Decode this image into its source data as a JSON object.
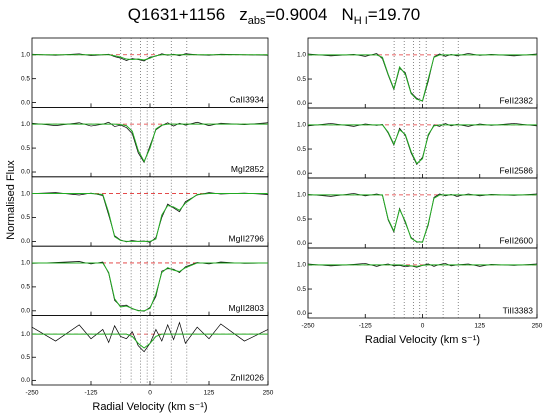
{
  "title": [
    "Q1631+1156",
    "z",
    "abs",
    "=0.9004",
    "N",
    "H I",
    "=19.70"
  ],
  "ylabel": "Normalised Flux",
  "components": [
    -62,
    -40,
    -20,
    -6,
    8,
    45,
    78
  ],
  "continuum": 1,
  "chart_data": [
    {
      "type": "line",
      "label": "CaII3934",
      "x": [
        -250,
        -200,
        -150,
        -125,
        -100,
        -87.5,
        -75,
        -62.5,
        -50,
        -37.5,
        -25,
        -12.5,
        0,
        12.5,
        25,
        37.5,
        50,
        62.5,
        75,
        100,
        125,
        150,
        200,
        250
      ],
      "xlim": [
        -250,
        250
      ],
      "xticks": [
        -250,
        -125,
        0,
        125,
        250
      ],
      "ylim": [
        -0.1,
        1.35
      ],
      "yticks": [
        {
          "value": 0,
          "label": "0.0"
        },
        {
          "value": 0.5,
          "label": "0.5"
        },
        {
          "value": 1,
          "label": "1.0"
        }
      ],
      "series": [
        {
          "color": "#000000",
          "values": [
            1.01,
            0.99,
            1.02,
            0.98,
            1.0,
            1.01,
            0.96,
            0.93,
            0.88,
            0.92,
            0.9,
            0.87,
            0.95,
            0.97,
            1.02,
            0.99,
            1.01,
            0.98,
            1.02,
            1.0,
            0.99,
            1.01,
            1.0,
            0.99
          ]
        },
        {
          "color": "#22aa22",
          "values": [
            1,
            1,
            1,
            1,
            1,
            1,
            0.98,
            0.95,
            0.91,
            0.9,
            0.91,
            0.89,
            0.93,
            0.98,
            1,
            1,
            1,
            1,
            1,
            1,
            1,
            1,
            1,
            1
          ]
        }
      ]
    },
    {
      "type": "line",
      "label": "MgI2852",
      "x": [
        -250,
        -200,
        -150,
        -125,
        -100,
        -87.5,
        -75,
        -62.5,
        -50,
        -37.5,
        -25,
        -12.5,
        0,
        12.5,
        25,
        37.5,
        50,
        62.5,
        75,
        100,
        125,
        150,
        200,
        250
      ],
      "xlim": [
        -250,
        250
      ],
      "xticks": [
        -250,
        -125,
        0,
        125,
        250
      ],
      "ylim": [
        -0.1,
        1.35
      ],
      "yticks": [
        {
          "value": 0,
          "label": "0.0"
        },
        {
          "value": 0.5,
          "label": "0.5"
        },
        {
          "value": 1,
          "label": "1.0"
        }
      ],
      "series": [
        {
          "color": "#000000",
          "values": [
            1.02,
            0.97,
            1.03,
            0.96,
            1.0,
            1.04,
            0.95,
            0.98,
            0.93,
            0.8,
            0.4,
            0.2,
            0.55,
            0.88,
            0.97,
            1.03,
            0.96,
            1.02,
            0.98,
            1.04,
            0.97,
            1.02,
            0.99,
            1.03
          ]
        },
        {
          "color": "#22aa22",
          "values": [
            1,
            1,
            1,
            1,
            1,
            1,
            1,
            0.99,
            0.97,
            0.85,
            0.45,
            0.22,
            0.5,
            0.9,
            0.98,
            1,
            1,
            1,
            1,
            1,
            1,
            1,
            1,
            1
          ]
        }
      ]
    },
    {
      "type": "line",
      "label": "MgII2796",
      "x": [
        -250,
        -200,
        -150,
        -125,
        -100,
        -87.5,
        -75,
        -62.5,
        -50,
        -37.5,
        -25,
        -12.5,
        0,
        12.5,
        25,
        37.5,
        50,
        62.5,
        75,
        100,
        125,
        150,
        200,
        250
      ],
      "xlim": [
        -250,
        250
      ],
      "xticks": [
        -250,
        -125,
        0,
        125,
        250
      ],
      "ylim": [
        -0.1,
        1.35
      ],
      "yticks": [
        {
          "value": 0,
          "label": "0.0"
        },
        {
          "value": 0.5,
          "label": "0.5"
        },
        {
          "value": 1,
          "label": "1.0"
        }
      ],
      "series": [
        {
          "color": "#000000",
          "values": [
            1.0,
            1.02,
            0.97,
            1.01,
            0.96,
            0.55,
            0.12,
            0.03,
            -0.01,
            0.02,
            0.0,
            0.01,
            -0.02,
            0.08,
            0.5,
            0.78,
            0.7,
            0.62,
            0.83,
            0.97,
            1.02,
            0.99,
            1.01,
            0.98
          ]
        },
        {
          "color": "#22aa22",
          "values": [
            1,
            1,
            1,
            1,
            0.98,
            0.6,
            0.1,
            0.02,
            0,
            0,
            0,
            0,
            0,
            0.05,
            0.55,
            0.75,
            0.72,
            0.65,
            0.8,
            0.98,
            1,
            1,
            1,
            1
          ]
        }
      ]
    },
    {
      "type": "line",
      "label": "MgII2803",
      "x": [
        -250,
        -200,
        -150,
        -125,
        -100,
        -87.5,
        -75,
        -62.5,
        -50,
        -37.5,
        -25,
        -12.5,
        0,
        12.5,
        25,
        37.5,
        50,
        62.5,
        75,
        100,
        125,
        150,
        200,
        250
      ],
      "xlim": [
        -250,
        250
      ],
      "xticks": [
        -250,
        -125,
        0,
        125,
        250
      ],
      "ylim": [
        -0.1,
        1.35
      ],
      "yticks": [
        {
          "value": 0,
          "label": "0.0"
        },
        {
          "value": 0.5,
          "label": "0.5"
        },
        {
          "value": 1,
          "label": "1.0"
        }
      ],
      "series": [
        {
          "color": "#000000",
          "values": [
            0.99,
            1.01,
            1.03,
            0.98,
            1.02,
            0.78,
            0.22,
            0.1,
            0.12,
            0.04,
            0.01,
            -0.01,
            0.07,
            0.3,
            0.83,
            0.88,
            0.87,
            0.8,
            0.92,
            1.01,
            0.98,
            1.02,
            0.99,
            1.0
          ]
        },
        {
          "color": "#22aa22",
          "values": [
            1,
            1,
            1,
            1,
            1,
            0.8,
            0.25,
            0.08,
            0.1,
            0.05,
            0,
            0,
            0.05,
            0.35,
            0.8,
            0.9,
            0.85,
            0.82,
            0.9,
            1,
            1,
            1,
            1,
            1
          ]
        }
      ]
    },
    {
      "type": "line",
      "label": "ZnII2026",
      "xlabel": "Radial Velocity (km s⁻¹)",
      "x": [
        -250,
        -200,
        -150,
        -125,
        -100,
        -87.5,
        -75,
        -62.5,
        -50,
        -37.5,
        -25,
        -12.5,
        0,
        12.5,
        25,
        37.5,
        50,
        62.5,
        75,
        100,
        125,
        150,
        200,
        250
      ],
      "xlim": [
        -250,
        250
      ],
      "xticks": [
        -250,
        -125,
        0,
        125,
        250
      ],
      "ylim": [
        -0.1,
        1.4
      ],
      "yticks": [
        {
          "value": 0,
          "label": "0.0"
        },
        {
          "value": 0.5,
          "label": "0.5"
        },
        {
          "value": 1,
          "label": "1.0"
        }
      ],
      "series": [
        {
          "color": "#000000",
          "values": [
            1.15,
            0.85,
            1.2,
            0.9,
            1.1,
            0.82,
            1.18,
            0.95,
            0.9,
            1.05,
            0.75,
            0.62,
            0.8,
            1.1,
            0.85,
            1.2,
            0.88,
            1.25,
            0.8,
            1.15,
            0.9,
            1.22,
            0.85,
            1.1
          ]
        },
        {
          "color": "#22aa22",
          "values": [
            1,
            1,
            1,
            1,
            1,
            1,
            1,
            1,
            1,
            0.95,
            0.8,
            0.7,
            0.8,
            0.95,
            1,
            1,
            1,
            1,
            1,
            1,
            1,
            1,
            1,
            1
          ]
        }
      ]
    },
    {
      "type": "line",
      "label": "FeII2382",
      "x": [
        -250,
        -200,
        -150,
        -125,
        -100,
        -87.5,
        -75,
        -62.5,
        -50,
        -37.5,
        -25,
        -12.5,
        0,
        12.5,
        25,
        37.5,
        50,
        62.5,
        75,
        100,
        125,
        150,
        200,
        250
      ],
      "xlim": [
        -250,
        250
      ],
      "xticks": [
        -250,
        -125,
        0,
        125,
        250
      ],
      "ylim": [
        -0.1,
        1.35
      ],
      "yticks": [
        {
          "value": 0,
          "label": "0.0"
        },
        {
          "value": 0.5,
          "label": "0.5"
        },
        {
          "value": 1,
          "label": "1.0"
        }
      ],
      "series": [
        {
          "color": "#000000",
          "values": [
            1.02,
            0.98,
            1.01,
            0.97,
            1.03,
            0.92,
            0.58,
            0.28,
            0.72,
            0.63,
            0.22,
            0.1,
            0.04,
            0.45,
            0.96,
            1.02,
            0.97,
            1.01,
            0.98,
            1.03,
            0.99,
            1.01,
            0.98,
            1.02
          ]
        },
        {
          "color": "#22aa22",
          "values": [
            1,
            1,
            1,
            1,
            1,
            0.95,
            0.6,
            0.3,
            0.75,
            0.6,
            0.2,
            0.08,
            0.05,
            0.5,
            0.95,
            1,
            1,
            1,
            1,
            1,
            1,
            1,
            1,
            1
          ]
        }
      ]
    },
    {
      "type": "line",
      "label": "FeII2586",
      "x": [
        -250,
        -200,
        -150,
        -125,
        -100,
        -87.5,
        -75,
        -62.5,
        -50,
        -37.5,
        -25,
        -12.5,
        0,
        12.5,
        25,
        37.5,
        50,
        62.5,
        75,
        100,
        125,
        150,
        200,
        250
      ],
      "xlim": [
        -250,
        250
      ],
      "xticks": [
        -250,
        -125,
        0,
        125,
        250
      ],
      "ylim": [
        -0.1,
        1.35
      ],
      "yticks": [
        {
          "value": 0,
          "label": "0.0"
        },
        {
          "value": 0.5,
          "label": "0.5"
        },
        {
          "value": 1,
          "label": "1.0"
        }
      ],
      "series": [
        {
          "color": "#000000",
          "values": [
            0.98,
            1.03,
            0.97,
            1.02,
            0.99,
            1.01,
            0.83,
            0.58,
            0.93,
            0.78,
            0.42,
            0.18,
            0.33,
            0.77,
            1.0,
            0.97,
            1.03,
            0.98,
            1.01,
            0.97,
            1.02,
            0.99,
            1.03,
            0.98
          ]
        },
        {
          "color": "#22aa22",
          "values": [
            1,
            1,
            1,
            1,
            1,
            1,
            0.85,
            0.6,
            0.9,
            0.8,
            0.45,
            0.2,
            0.3,
            0.8,
            0.98,
            1,
            1,
            1,
            1,
            1,
            1,
            1,
            1,
            1
          ]
        }
      ]
    },
    {
      "type": "line",
      "label": "FeII2600",
      "x": [
        -250,
        -200,
        -150,
        -125,
        -100,
        -87.5,
        -75,
        -62.5,
        -50,
        -37.5,
        -25,
        -12.5,
        0,
        12.5,
        25,
        37.5,
        50,
        62.5,
        75,
        100,
        125,
        150,
        200,
        250
      ],
      "xlim": [
        -250,
        250
      ],
      "xticks": [
        -250,
        -125,
        0,
        125,
        250
      ],
      "ylim": [
        -0.1,
        1.35
      ],
      "yticks": [
        {
          "value": 0,
          "label": "0.0"
        },
        {
          "value": 0.5,
          "label": "0.5"
        },
        {
          "value": 1,
          "label": "1.0"
        }
      ],
      "series": [
        {
          "color": "#000000",
          "values": [
            1.01,
            0.97,
            1.03,
            0.98,
            1.02,
            0.99,
            0.48,
            0.23,
            0.72,
            0.42,
            0.12,
            0.02,
            0.03,
            0.37,
            0.95,
            1.02,
            0.98,
            1.01,
            0.97,
            1.02,
            0.98,
            1.01,
            0.99,
            1.02
          ]
        },
        {
          "color": "#22aa22",
          "values": [
            1,
            1,
            1,
            1,
            1,
            1,
            0.5,
            0.25,
            0.7,
            0.45,
            0.1,
            0.03,
            0.02,
            0.4,
            0.93,
            1,
            1,
            1,
            1,
            1,
            1,
            1,
            1,
            1
          ]
        }
      ]
    },
    {
      "type": "line",
      "label": "TiII3383",
      "xlabel": "Radial Velocity (km s⁻¹)",
      "x": [
        -250,
        -200,
        -150,
        -125,
        -100,
        -87.5,
        -75,
        -62.5,
        -50,
        -37.5,
        -25,
        -12.5,
        0,
        12.5,
        25,
        37.5,
        50,
        62.5,
        75,
        100,
        125,
        150,
        200,
        250
      ],
      "xlim": [
        -250,
        250
      ],
      "xticks": [
        -250,
        -125,
        0,
        125,
        250
      ],
      "ylim": [
        -0.1,
        1.35
      ],
      "yticks": [
        {
          "value": 0,
          "label": "0.0"
        },
        {
          "value": 0.5,
          "label": "0.5"
        },
        {
          "value": 1,
          "label": "1.0"
        }
      ],
      "series": [
        {
          "color": "#000000",
          "values": [
            1.02,
            0.98,
            1.01,
            1.03,
            0.97,
            1.0,
            1.02,
            0.98,
            0.99,
            0.96,
            0.98,
            0.95,
            0.99,
            1.02,
            0.97,
            1.01,
            1.03,
            0.98,
            1.0,
            1.02,
            0.97,
            1.01,
            0.99,
            1.02
          ]
        },
        {
          "color": "#22aa22",
          "values": [
            1,
            1,
            1,
            1,
            1,
            1,
            1,
            1,
            1,
            0.99,
            0.98,
            0.97,
            0.99,
            1,
            1,
            1,
            1,
            1,
            1,
            1,
            1,
            1,
            1,
            1
          ]
        }
      ]
    }
  ]
}
